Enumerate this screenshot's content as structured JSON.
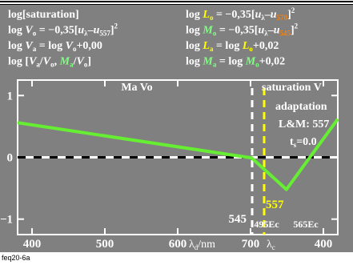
{
  "header": {
    "left": [
      [
        {
          "t": "log[saturation]",
          "c": "#ffffff"
        }
      ],
      [
        {
          "t": "log ",
          "c": "#ffffff"
        },
        {
          "t": "V",
          "c": "#ffffff",
          "i": true
        },
        {
          "t": "o",
          "c": "#ffffff",
          "sub": true
        },
        {
          "t": " = −0,35[",
          "c": "#ffffff"
        },
        {
          "t": "u",
          "c": "#ffffff",
          "i": true
        },
        {
          "t": "λ",
          "c": "#ffffff",
          "sub": true
        },
        {
          "t": "–",
          "c": "#ffffff"
        },
        {
          "t": "u",
          "c": "#ffffff",
          "i": true
        },
        {
          "t": "557",
          "c": "#ffffff",
          "sub": true
        },
        {
          "t": "]",
          "c": "#ffffff"
        },
        {
          "t": "2",
          "c": "#ffffff",
          "sup": true
        }
      ],
      [
        {
          "t": "log ",
          "c": "#ffffff"
        },
        {
          "t": "V",
          "c": "#ffffff",
          "i": true
        },
        {
          "t": "a",
          "c": "#ffffff",
          "sub": true
        },
        {
          "t": " = log ",
          "c": "#ffffff"
        },
        {
          "t": "V",
          "c": "#ffffff",
          "i": true
        },
        {
          "t": "o",
          "c": "#ffffff",
          "sub": true
        },
        {
          "t": "+0,00",
          "c": "#ffffff"
        }
      ],
      [
        {
          "t": "log [",
          "c": "#ffffff"
        },
        {
          "t": "V",
          "c": "#ffffff",
          "i": true
        },
        {
          "t": "a",
          "c": "#ffffff",
          "sub": true
        },
        {
          "t": "/",
          "c": "#ffffff"
        },
        {
          "t": "V",
          "c": "#ffffff",
          "i": true
        },
        {
          "t": "o",
          "c": "#ffffff",
          "sub": true
        },
        {
          "t": ", ",
          "c": "#ffffff"
        },
        {
          "t": "M",
          "c": "#80ff80",
          "i": true
        },
        {
          "t": "a",
          "c": "#80ff80",
          "sub": true
        },
        {
          "t": "/",
          "c": "#ffffff"
        },
        {
          "t": "V",
          "c": "#ffffff",
          "i": true
        },
        {
          "t": "o",
          "c": "#ffffff",
          "sub": true
        },
        {
          "t": "]",
          "c": "#ffffff"
        }
      ]
    ],
    "right": [
      [
        {
          "t": "log ",
          "c": "#ffffff"
        },
        {
          "t": "L",
          "c": "#ffff00",
          "i": true
        },
        {
          "t": "o",
          "c": "#ffff00",
          "sub": true
        },
        {
          "t": " = −0,35[",
          "c": "#ffffff"
        },
        {
          "t": "u",
          "c": "#ffffff",
          "i": true
        },
        {
          "t": "λ",
          "c": "#ffffff",
          "sub": true
        },
        {
          "t": "–",
          "c": "#ffffff"
        },
        {
          "t": "u",
          "c": "#ffffff",
          "i": true
        },
        {
          "t": "570",
          "c": "#ff8000",
          "sub": true
        },
        {
          "t": "]",
          "c": "#ffffff"
        },
        {
          "t": "2",
          "c": "#ffffff",
          "sup": true
        }
      ],
      [
        {
          "t": "log ",
          "c": "#ffffff"
        },
        {
          "t": "M",
          "c": "#80ff80",
          "i": true
        },
        {
          "t": "o",
          "c": "#80ff80",
          "sub": true
        },
        {
          "t": " = −0,35[",
          "c": "#ffffff"
        },
        {
          "t": "u",
          "c": "#ffffff",
          "i": true
        },
        {
          "t": "λ",
          "c": "#ffffff",
          "sub": true
        },
        {
          "t": "–",
          "c": "#ffffff"
        },
        {
          "t": "u",
          "c": "#ffffff",
          "i": true
        },
        {
          "t": "545",
          "c": "#ff8000",
          "sub": true
        },
        {
          "t": "]",
          "c": "#ffffff"
        },
        {
          "t": "2",
          "c": "#ffffff",
          "sup": true
        }
      ],
      [
        {
          "t": "log ",
          "c": "#ffffff"
        },
        {
          "t": "L",
          "c": "#ffff00",
          "i": true
        },
        {
          "t": "a",
          "c": "#ffff00",
          "sub": true
        },
        {
          "t": " = log ",
          "c": "#ffffff"
        },
        {
          "t": "L",
          "c": "#ffff00",
          "i": true
        },
        {
          "t": "o",
          "c": "#ffff00",
          "sub": true
        },
        {
          "t": "+0,02",
          "c": "#ffffff"
        }
      ],
      [
        {
          "t": "log ",
          "c": "#ffffff"
        },
        {
          "t": "M",
          "c": "#80ff80",
          "i": true
        },
        {
          "t": "a",
          "c": "#80ff80",
          "sub": true
        },
        {
          "t": " = log ",
          "c": "#ffffff"
        },
        {
          "t": "M",
          "c": "#80ff80",
          "i": true
        },
        {
          "t": "o",
          "c": "#80ff80",
          "sub": true
        },
        {
          "t": "+0,02",
          "c": "#ffffff"
        }
      ]
    ]
  },
  "chart_data": {
    "type": "line",
    "xlim": [
      390,
      410
    ],
    "ylim": [
      -1.25,
      1.25
    ],
    "x_ticks": [
      "400",
      "500",
      "600",
      "700",
      "400"
    ],
    "y_ticks": [
      "1",
      "0",
      "−1"
    ],
    "x_axis_label": {
      "lambda": "λ",
      "sub": "d",
      "unit": "/nm",
      "second_tick": "700",
      "lambda_c": "λ",
      "sub_c": "c"
    },
    "series": [
      {
        "color": "#66ee33",
        "x": [
          390.0,
          404.62,
          406.79,
          410.0
        ],
        "y": [
          0.56,
          -0.01,
          -0.52,
          0.62
        ]
      }
    ],
    "vlines": [
      {
        "x": 404.65,
        "color": "#ffffff",
        "style": "dashed",
        "label": "545",
        "label_color": "#ffffff"
      },
      {
        "x": 405.4,
        "color": "#ffff00",
        "style": "dashed",
        "label": "557",
        "label_color": "#ffff00"
      }
    ],
    "zero_line": {
      "y": 0,
      "color": "#ffffff",
      "style": "dashed-black"
    },
    "annotations": {
      "ma_vo": "Ma Vo",
      "saturation": "saturation V",
      "adaptation": "adaptation",
      "lm": "L&M: 557",
      "ts": "t",
      "ts_sub": "s",
      "ts_val": "=0.0",
      "ec1": "495Ec",
      "ec2": "565Ec"
    },
    "colors": {
      "background": "#808080",
      "frame": "#000000",
      "axis": "#ffffff",
      "curve": "#66ee33"
    }
  },
  "footer": {
    "code": "feq20-6a"
  }
}
